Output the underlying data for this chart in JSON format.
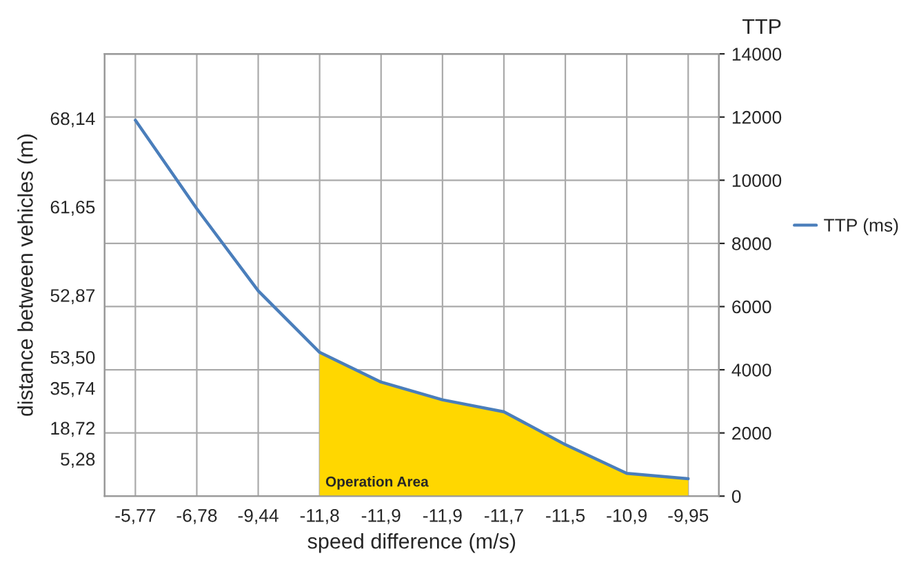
{
  "chart_data": {
    "type": "line",
    "xlabel": "speed difference (m/s)",
    "ylabel": "distance between vehicles (m)",
    "y2label": "TTP",
    "categories": [
      "-5,77",
      "-6,78",
      "-9,44",
      "-11,8",
      "-11,9",
      "-11,9",
      "-11,7",
      "-11,5",
      "-10,9",
      "-9,95"
    ],
    "series": [
      {
        "type": "area",
        "color": "#ffd700",
        "axis": "y2",
        "values": [
          null,
          null,
          null,
          4550,
          3610,
          3050,
          2670,
          1630,
          720,
          550
        ]
      },
      {
        "name": "TTP (ms)",
        "color": "#4a7ebb",
        "axis": "y2",
        "values": [
          11900,
          9100,
          6500,
          4550,
          3610,
          3050,
          2670,
          1630,
          720,
          550
        ]
      }
    ],
    "y2lim": [
      0,
      14000
    ],
    "y2ticks": [
      0,
      2000,
      4000,
      6000,
      8000,
      10000,
      12000,
      14000
    ],
    "annotations": [
      "Operation Area",
      "68,14",
      "61,65",
      "52,87",
      "53,50",
      "35,74",
      "18,72",
      "5,28"
    ],
    "grid": true,
    "legend": "right",
    "marker": "none",
    "line_style": "solid"
  }
}
